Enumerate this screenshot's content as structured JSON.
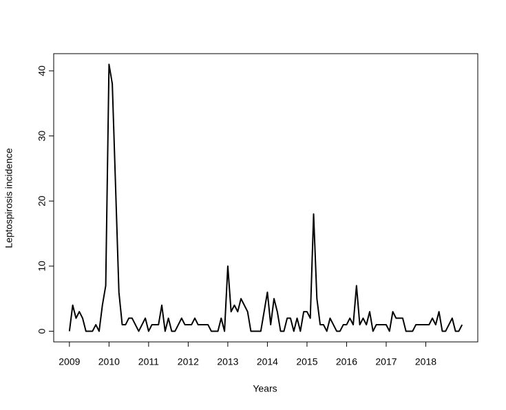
{
  "chart_data": {
    "type": "line",
    "xlabel": "Years",
    "ylabel": "Leptospirosis incidence",
    "x": [
      2009,
      2009.083,
      2009.167,
      2009.25,
      2009.333,
      2009.417,
      2009.5,
      2009.583,
      2009.667,
      2009.75,
      2009.833,
      2009.917,
      2010,
      2010.083,
      2010.167,
      2010.25,
      2010.333,
      2010.417,
      2010.5,
      2010.583,
      2010.667,
      2010.75,
      2010.833,
      2010.917,
      2011,
      2011.083,
      2011.167,
      2011.25,
      2011.333,
      2011.417,
      2011.5,
      2011.583,
      2011.667,
      2011.75,
      2011.833,
      2011.917,
      2012,
      2012.083,
      2012.167,
      2012.25,
      2012.333,
      2012.417,
      2012.5,
      2012.583,
      2012.667,
      2012.75,
      2012.833,
      2012.917,
      2013,
      2013.083,
      2013.167,
      2013.25,
      2013.333,
      2013.417,
      2013.5,
      2013.583,
      2013.667,
      2013.75,
      2013.833,
      2013.917,
      2014,
      2014.083,
      2014.167,
      2014.25,
      2014.333,
      2014.417,
      2014.5,
      2014.583,
      2014.667,
      2014.75,
      2014.833,
      2014.917,
      2015,
      2015.083,
      2015.167,
      2015.25,
      2015.333,
      2015.417,
      2015.5,
      2015.583,
      2015.667,
      2015.75,
      2015.833,
      2015.917,
      2016,
      2016.083,
      2016.167,
      2016.25,
      2016.333,
      2016.417,
      2016.5,
      2016.583,
      2016.667,
      2016.75,
      2016.833,
      2016.917,
      2017,
      2017.083,
      2017.167,
      2017.25,
      2017.333,
      2017.417,
      2017.5,
      2017.583,
      2017.667,
      2017.75,
      2017.833,
      2017.917,
      2018,
      2018.083,
      2018.167,
      2018.25,
      2018.333,
      2018.417,
      2018.5,
      2018.583,
      2018.667,
      2018.75,
      2018.833,
      2018.917
    ],
    "series": [
      {
        "color": "#000000",
        "values": [
          0,
          4,
          2,
          3,
          2,
          0,
          0,
          0,
          1,
          0,
          4,
          7,
          41,
          38,
          22,
          6,
          1,
          1,
          2,
          2,
          1,
          0,
          1,
          2,
          0,
          1,
          1,
          1,
          4,
          0,
          2,
          0,
          0,
          1,
          2,
          1,
          1,
          1,
          2,
          1,
          1,
          1,
          1,
          0,
          0,
          0,
          2,
          0,
          10,
          3,
          4,
          3,
          5,
          4,
          3,
          0,
          0,
          0,
          0,
          3,
          6,
          1,
          5,
          3,
          0,
          0,
          2,
          2,
          0,
          2,
          0,
          3,
          3,
          2,
          18,
          5,
          1,
          1,
          0,
          2,
          1,
          0,
          0,
          1,
          1,
          2,
          1,
          7,
          1,
          2,
          1,
          3,
          0,
          1,
          1,
          1,
          1,
          0,
          3,
          2,
          2,
          2,
          0,
          0,
          0,
          1,
          1,
          1,
          1,
          1,
          2,
          1,
          3,
          0,
          0,
          1,
          2,
          0,
          0,
          1
        ]
      }
    ],
    "xlim": [
      2008.603,
      2019.313
    ],
    "xticks": [
      2009,
      2010,
      2011,
      2012,
      2013,
      2014,
      2015,
      2016,
      2017,
      2018
    ],
    "ylim": [
      -1.64,
      42.64
    ],
    "yticks": [
      0,
      10,
      20,
      30,
      40
    ],
    "grid": false
  }
}
